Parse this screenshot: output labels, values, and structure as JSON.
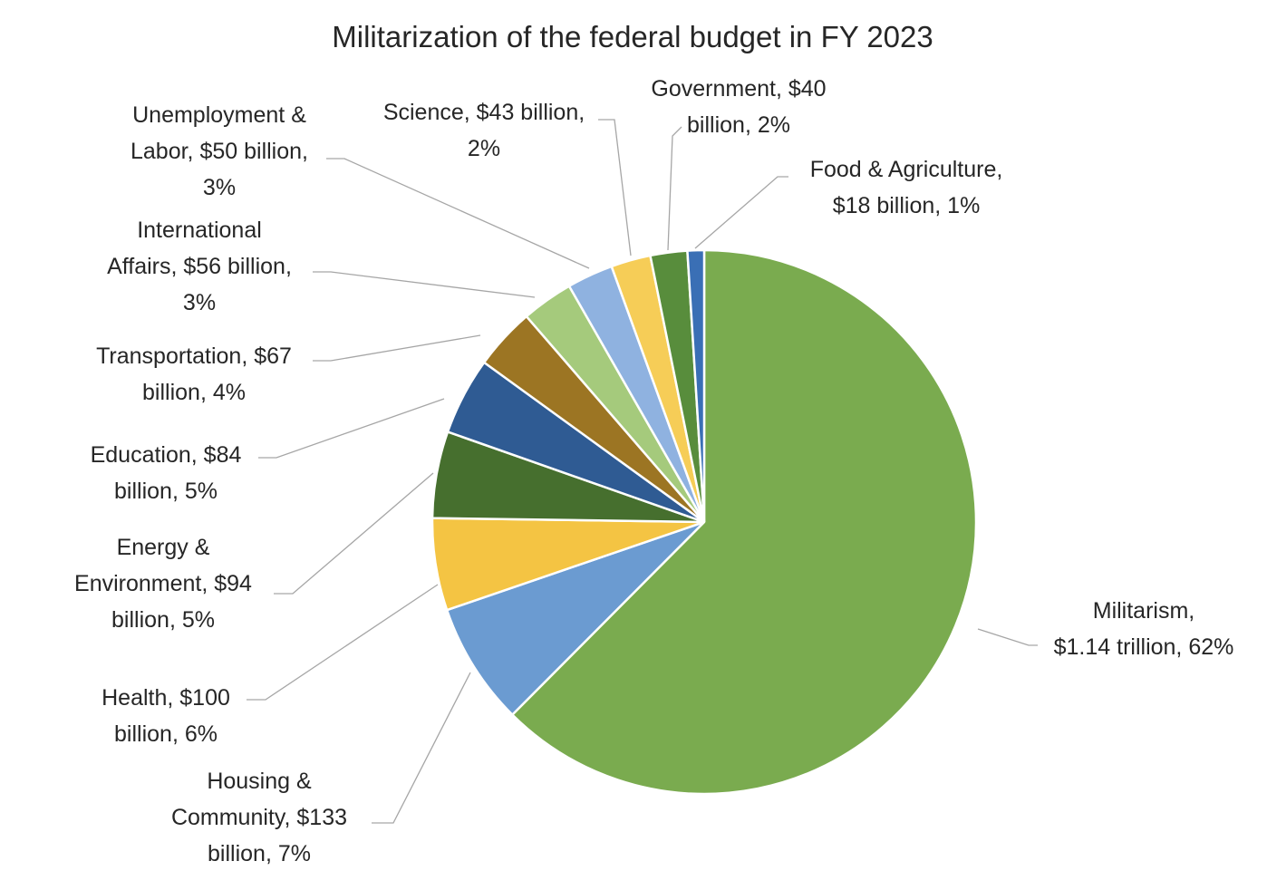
{
  "chart_data": {
    "type": "pie",
    "title": "Militarization of the federal budget in FY 2023",
    "slices": [
      {
        "name": "Militarism",
        "value": 1140,
        "value_label": "$1.14 trillion",
        "percent": 62,
        "color": "#7aab4f",
        "label_lines": [
          "Militarism,",
          "$1.14 trillion, 62%"
        ]
      },
      {
        "name": "Housing & Community",
        "value": 133,
        "value_label": "$133 billion",
        "percent": 7,
        "color": "#6b9bd1",
        "label_lines": [
          "Housing &",
          "Community, $133",
          "billion, 7%"
        ]
      },
      {
        "name": "Health",
        "value": 100,
        "value_label": "$100 billion",
        "percent": 6,
        "color": "#f4c443",
        "label_lines": [
          "Health, $100",
          "billion, 6%"
        ]
      },
      {
        "name": "Energy & Environment",
        "value": 94,
        "value_label": "$94 billion",
        "percent": 5,
        "color": "#466f2e",
        "label_lines": [
          "Energy &",
          "Environment, $94",
          "billion, 5%"
        ]
      },
      {
        "name": "Education",
        "value": 84,
        "value_label": "$84 billion",
        "percent": 5,
        "color": "#2f5b93",
        "label_lines": [
          "Education, $84",
          "billion, 5%"
        ]
      },
      {
        "name": "Transportation",
        "value": 67,
        "value_label": "$67 billion",
        "percent": 4,
        "color": "#9c7523",
        "label_lines": [
          "Transportation, $67",
          "billion, 4%"
        ]
      },
      {
        "name": "International Affairs",
        "value": 56,
        "value_label": "$56 billion",
        "percent": 3,
        "color": "#a5ca7c",
        "label_lines": [
          "International",
          "Affairs, $56 billion,",
          "3%"
        ]
      },
      {
        "name": "Unemployment & Labor",
        "value": 50,
        "value_label": "$50 billion",
        "percent": 3,
        "color": "#8fb2e0",
        "label_lines": [
          "Unemployment &",
          "Labor, $50 billion,",
          "3%"
        ]
      },
      {
        "name": "Science",
        "value": 43,
        "value_label": "$43 billion",
        "percent": 2,
        "color": "#f6cd57",
        "label_lines": [
          "Science, $43 billion,",
          "2%"
        ]
      },
      {
        "name": "Government",
        "value": 40,
        "value_label": "$40 billion",
        "percent": 2,
        "color": "#588d3c",
        "label_lines": [
          "Government, $40",
          "billion, 2%"
        ]
      },
      {
        "name": "Food & Agriculture",
        "value": 18,
        "value_label": "$18 billion",
        "percent": 1,
        "color": "#3a6fb5",
        "label_lines": [
          "Food & Agriculture,",
          "$18 billion, 1%"
        ]
      }
    ],
    "start_angle": "12 o'clock",
    "direction": "clockwise",
    "legend": "none (data labels with leader lines)"
  }
}
